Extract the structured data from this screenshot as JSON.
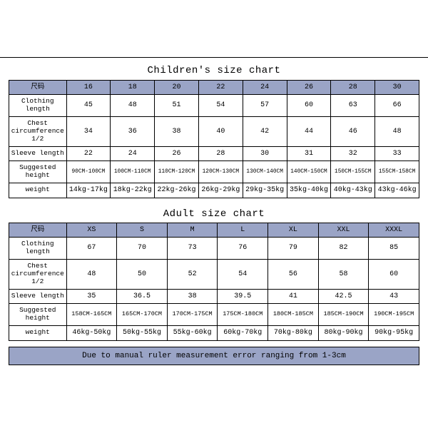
{
  "colors": {
    "header_bg": "#9aa4c6",
    "border": "#000000",
    "background": "#ffffff",
    "text": "#000000"
  },
  "font_family": "Courier New, monospace",
  "children": {
    "title": "Children's size chart",
    "size_label": "尺码",
    "sizes": [
      "16",
      "18",
      "20",
      "22",
      "24",
      "26",
      "28",
      "30"
    ],
    "rows": [
      {
        "label": "Clothing length",
        "values": [
          "45",
          "48",
          "51",
          "54",
          "57",
          "60",
          "63",
          "66"
        ]
      },
      {
        "label": "Chest circumference 1/2",
        "values": [
          "34",
          "36",
          "38",
          "40",
          "42",
          "44",
          "46",
          "48"
        ]
      },
      {
        "label": "Sleeve length",
        "values": [
          "22",
          "24",
          "26",
          "28",
          "30",
          "31",
          "32",
          "33"
        ]
      },
      {
        "label": "Suggested height",
        "values": [
          "90CM-100CM",
          "100CM-110CM",
          "110CM-120CM",
          "120CM-130CM",
          "130CM-140CM",
          "140CM-150CM",
          "150CM-155CM",
          "155CM-158CM"
        ]
      },
      {
        "label": "weight",
        "values": [
          "14kg-17kg",
          "18kg-22kg",
          "22kg-26kg",
          "26kg-29kg",
          "29kg-35kg",
          "35kg-40kg",
          "40kg-43kg",
          "43kg-46kg"
        ]
      }
    ]
  },
  "adult": {
    "title": "Adult size chart",
    "size_label": "尺码",
    "sizes": [
      "XS",
      "S",
      "M",
      "L",
      "XL",
      "XXL",
      "XXXL"
    ],
    "rows": [
      {
        "label": "Clothing length",
        "values": [
          "67",
          "70",
          "73",
          "76",
          "79",
          "82",
          "85"
        ]
      },
      {
        "label": "Chest circumference 1/2",
        "values": [
          "48",
          "50",
          "52",
          "54",
          "56",
          "58",
          "60"
        ]
      },
      {
        "label": "Sleeve length",
        "values": [
          "35",
          "36.5",
          "38",
          "39.5",
          "41",
          "42.5",
          "43"
        ]
      },
      {
        "label": "Suggested height",
        "values": [
          "158CM-165CM",
          "165CM-170CM",
          "170CM-175CM",
          "175CM-180CM",
          "180CM-185CM",
          "185CM-190CM",
          "190CM-195CM"
        ]
      },
      {
        "label": "weight",
        "values": [
          "46kg-50kg",
          "50kg-55kg",
          "55kg-60kg",
          "60kg-70kg",
          "70kg-80kg",
          "80kg-90kg",
          "90kg-95kg"
        ]
      }
    ]
  },
  "note": "Due to manual ruler measurement error ranging from 1-3cm"
}
